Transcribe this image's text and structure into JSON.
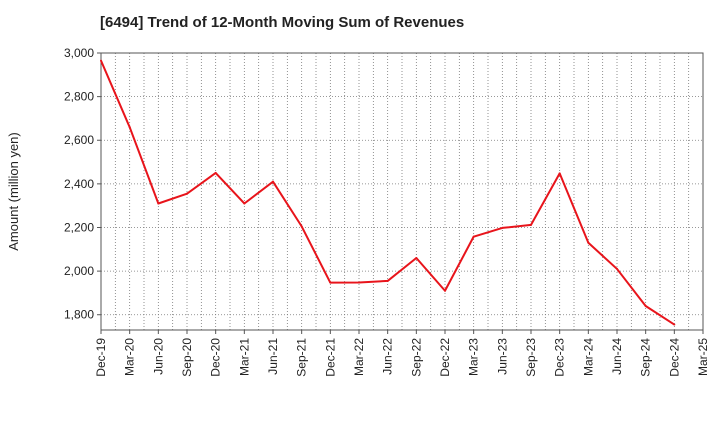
{
  "chart_data": {
    "type": "line",
    "title": "[6494]  Trend of 12-Month Moving Sum of Revenues",
    "xlabel": "",
    "ylabel": "Amount (million yen)",
    "x_tick_labels": [
      "Dec-19",
      "Mar-20",
      "Jun-20",
      "Sep-20",
      "Dec-20",
      "Mar-21",
      "Jun-21",
      "Sep-21",
      "Dec-21",
      "Mar-22",
      "Jun-22",
      "Sep-22",
      "Dec-22",
      "Mar-23",
      "Jun-23",
      "Sep-23",
      "Dec-23",
      "Mar-24",
      "Jun-24",
      "Sep-24",
      "Dec-24",
      "Mar-25"
    ],
    "y_ticks": [
      1800,
      2000,
      2200,
      2400,
      2600,
      2800,
      3000
    ],
    "y_tick_labels": [
      "1,800",
      "2,000",
      "2,200",
      "2,400",
      "2,600",
      "2,800",
      "3,000"
    ],
    "ylim": [
      1730,
      3000
    ],
    "grid": true,
    "series": [
      {
        "color": "#e8141b",
        "x": [
          "Dec-19",
          "Mar-20",
          "Jun-20",
          "Sep-20",
          "Dec-20",
          "Mar-21",
          "Jun-21",
          "Sep-21",
          "Dec-21",
          "Mar-22",
          "Jun-22",
          "Sep-22",
          "Dec-22",
          "Mar-23",
          "Jun-23",
          "Sep-23",
          "Dec-23",
          "Mar-24",
          "Jun-24",
          "Sep-24",
          "Dec-24"
        ],
        "values": [
          2965,
          2660,
          2310,
          2355,
          2450,
          2310,
          2410,
          2205,
          1947,
          1948,
          1955,
          2060,
          1910,
          2158,
          2198,
          2212,
          2448,
          2130,
          2010,
          1840,
          1755
        ]
      }
    ]
  }
}
